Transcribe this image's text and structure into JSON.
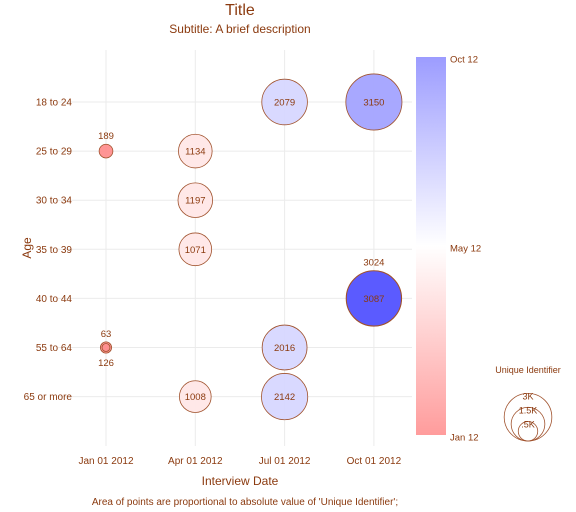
{
  "chart_data": {
    "type": "scatter",
    "title": "Title",
    "subtitle": "Subtitle: A brief description",
    "xlabel": "Interview Date",
    "ylabel": "Age",
    "footnote": "Area of points are proportional to absolute value of 'Unique Identifier';",
    "x_ticks": [
      "Jan 01 2012",
      "Apr 01 2012",
      "Jul 01 2012",
      "Oct 01 2012"
    ],
    "y_categories": [
      "18 to 24",
      "25 to 29",
      "30 to 34",
      "35 to 39",
      "40 to 44",
      "55 to 64",
      "65 or more"
    ],
    "grid": true,
    "points": [
      {
        "x": "Jul 01 2012",
        "y": "18 to 24",
        "value": 2079
      },
      {
        "x": "Oct 01 2012",
        "y": "18 to 24",
        "value": 3150
      },
      {
        "x": "Jan 01 2012",
        "y": "25 to 29",
        "value": 189
      },
      {
        "x": "Apr 01 2012",
        "y": "25 to 29",
        "value": 1134
      },
      {
        "x": "Apr 01 2012",
        "y": "30 to 34",
        "value": 1197
      },
      {
        "x": "Apr 01 2012",
        "y": "35 to 39",
        "value": 1071
      },
      {
        "x": "Oct 01 2012",
        "y": "40 to 44",
        "value": 3024
      },
      {
        "x": "Oct 01 2012",
        "y": "40 to 44",
        "value": 3087
      },
      {
        "x": "Jan 01 2012",
        "y": "55 to 64",
        "value": 63
      },
      {
        "x": "Jan 01 2012",
        "y": "55 to 64",
        "value": 126
      },
      {
        "x": "Jul 01 2012",
        "y": "55 to 64",
        "value": 2016
      },
      {
        "x": "Apr 01 2012",
        "y": "65 or more",
        "value": 1008
      },
      {
        "x": "Jul 01 2012",
        "y": "65 or more",
        "value": 2142
      }
    ],
    "color_legend": {
      "labels": [
        "Oct 12",
        "May 12",
        "Jan 12"
      ],
      "colors": [
        "#9c9cff",
        "#ffffff",
        "#ff9c9c"
      ]
    },
    "size_legend": {
      "title": "Unique Identifier",
      "labels": [
        "3K",
        "1.5K",
        ".5K"
      ],
      "values": [
        3000,
        1500,
        500
      ]
    },
    "colors": {
      "text": "#8b3a0f",
      "stroke": "#a0522d",
      "grid": "#ebebeb"
    }
  }
}
